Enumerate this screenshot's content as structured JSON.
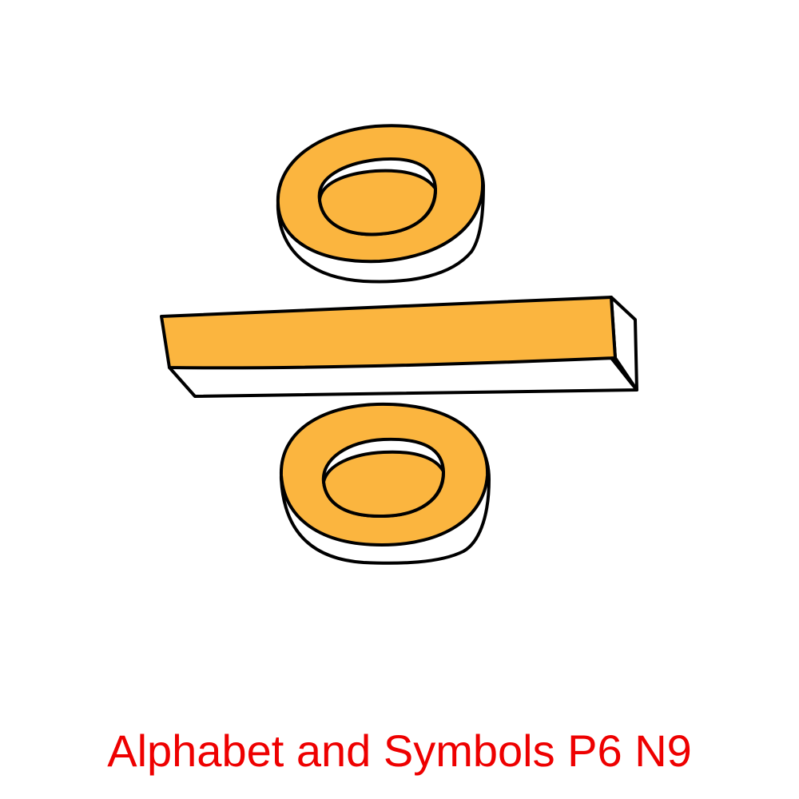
{
  "caption": {
    "text": "Alphabet and Symbols P6 N9"
  },
  "illustration": {
    "symbol": "division-sign-icon",
    "colors": {
      "fill": "#FBB53F",
      "side": "#FFFFFF",
      "outline": "#000000",
      "caption": "#EE0000"
    }
  }
}
